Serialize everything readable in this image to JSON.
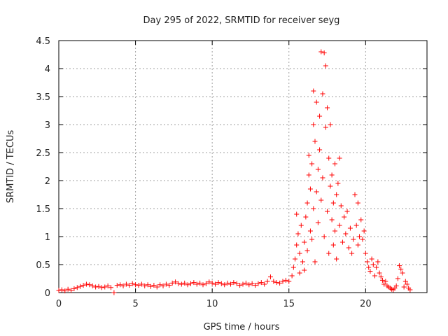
{
  "chart_data": {
    "type": "scatter",
    "title": "Day 295 of 2022, SRMTID for receiver seyg",
    "xlabel": "GPS time / hours",
    "ylabel": "SRMTID / TECUs",
    "xlim": [
      0,
      24
    ],
    "ylim": [
      0,
      4.5
    ],
    "grid": true,
    "marker": "+",
    "x_ticks": [
      {
        "value": 0,
        "label": "0"
      },
      {
        "value": 5,
        "label": "5"
      },
      {
        "value": 10,
        "label": "10"
      },
      {
        "value": 15,
        "label": "15"
      },
      {
        "value": 20,
        "label": "20"
      }
    ],
    "y_ticks": [
      {
        "value": 0,
        "label": "0"
      },
      {
        "value": 0.5,
        "label": "0.5"
      },
      {
        "value": 1,
        "label": "1"
      },
      {
        "value": 1.5,
        "label": "1.5"
      },
      {
        "value": 2,
        "label": "2"
      },
      {
        "value": 2.5,
        "label": "2.5"
      },
      {
        "value": 3,
        "label": "3"
      },
      {
        "value": 3.5,
        "label": "3.5"
      },
      {
        "value": 4,
        "label": "4"
      },
      {
        "value": 4.5,
        "label": "4.5"
      }
    ],
    "series": [
      {
        "name": "SRMTID",
        "color": "#ff0000",
        "points": [
          [
            0.0,
            0.04
          ],
          [
            0.2,
            0.05
          ],
          [
            0.4,
            0.03
          ],
          [
            0.6,
            0.06
          ],
          [
            0.8,
            0.04
          ],
          [
            1.0,
            0.07
          ],
          [
            1.2,
            0.09
          ],
          [
            1.4,
            0.11
          ],
          [
            1.6,
            0.13
          ],
          [
            1.8,
            0.15
          ],
          [
            2.0,
            0.14
          ],
          [
            2.2,
            0.12
          ],
          [
            2.4,
            0.1
          ],
          [
            2.6,
            0.11
          ],
          [
            2.8,
            0.09
          ],
          [
            3.0,
            0.1
          ],
          [
            3.2,
            0.12
          ],
          [
            3.4,
            0.09
          ],
          [
            3.6,
            0.0
          ],
          [
            3.8,
            0.13
          ],
          [
            4.0,
            0.14
          ],
          [
            4.2,
            0.12
          ],
          [
            4.4,
            0.15
          ],
          [
            4.6,
            0.13
          ],
          [
            4.8,
            0.16
          ],
          [
            5.0,
            0.14
          ],
          [
            5.2,
            0.13
          ],
          [
            5.4,
            0.15
          ],
          [
            5.6,
            0.12
          ],
          [
            5.8,
            0.14
          ],
          [
            6.0,
            0.11
          ],
          [
            6.2,
            0.13
          ],
          [
            6.4,
            0.1
          ],
          [
            6.6,
            0.14
          ],
          [
            6.8,
            0.12
          ],
          [
            7.0,
            0.15
          ],
          [
            7.2,
            0.13
          ],
          [
            7.4,
            0.17
          ],
          [
            7.6,
            0.19
          ],
          [
            7.8,
            0.16
          ],
          [
            8.0,
            0.15
          ],
          [
            8.2,
            0.17
          ],
          [
            8.4,
            0.14
          ],
          [
            8.6,
            0.16
          ],
          [
            8.8,
            0.18
          ],
          [
            9.0,
            0.15
          ],
          [
            9.2,
            0.17
          ],
          [
            9.4,
            0.14
          ],
          [
            9.6,
            0.16
          ],
          [
            9.8,
            0.19
          ],
          [
            10.0,
            0.17
          ],
          [
            10.2,
            0.15
          ],
          [
            10.4,
            0.18
          ],
          [
            10.6,
            0.16
          ],
          [
            10.8,
            0.14
          ],
          [
            11.0,
            0.17
          ],
          [
            11.2,
            0.15
          ],
          [
            11.4,
            0.18
          ],
          [
            11.6,
            0.16
          ],
          [
            11.8,
            0.13
          ],
          [
            12.0,
            0.15
          ],
          [
            12.2,
            0.17
          ],
          [
            12.4,
            0.14
          ],
          [
            12.6,
            0.16
          ],
          [
            12.8,
            0.13
          ],
          [
            13.0,
            0.16
          ],
          [
            13.2,
            0.18
          ],
          [
            13.4,
            0.15
          ],
          [
            13.6,
            0.2
          ],
          [
            13.8,
            0.28
          ],
          [
            14.0,
            0.2
          ],
          [
            14.2,
            0.18
          ],
          [
            14.4,
            0.17
          ],
          [
            14.6,
            0.2
          ],
          [
            14.8,
            0.22
          ],
          [
            15.0,
            0.2
          ],
          [
            15.2,
            0.3
          ],
          [
            15.3,
            0.45
          ],
          [
            15.4,
            0.6
          ],
          [
            15.5,
            0.85
          ],
          [
            15.5,
            1.4
          ],
          [
            15.6,
            1.05
          ],
          [
            15.7,
            0.35
          ],
          [
            15.7,
            0.7
          ],
          [
            15.8,
            1.2
          ],
          [
            15.9,
            0.55
          ],
          [
            16.0,
            0.9
          ],
          [
            16.0,
            0.4
          ],
          [
            16.1,
            1.35
          ],
          [
            16.2,
            1.6
          ],
          [
            16.2,
            0.75
          ],
          [
            16.3,
            2.1
          ],
          [
            16.3,
            2.45
          ],
          [
            16.4,
            1.1
          ],
          [
            16.4,
            1.85
          ],
          [
            16.5,
            0.95
          ],
          [
            16.5,
            2.3
          ],
          [
            16.6,
            3.0
          ],
          [
            16.6,
            3.6
          ],
          [
            16.6,
            1.5
          ],
          [
            16.7,
            2.7
          ],
          [
            16.7,
            0.55
          ],
          [
            16.8,
            3.4
          ],
          [
            16.8,
            1.8
          ],
          [
            16.9,
            1.25
          ],
          [
            16.9,
            2.2
          ],
          [
            17.0,
            3.15
          ],
          [
            17.0,
            2.55
          ],
          [
            17.1,
            4.3
          ],
          [
            17.1,
            1.65
          ],
          [
            17.2,
            3.55
          ],
          [
            17.2,
            2.05
          ],
          [
            17.3,
            4.28
          ],
          [
            17.3,
            1.0
          ],
          [
            17.4,
            4.05
          ],
          [
            17.4,
            2.95
          ],
          [
            17.5,
            3.3
          ],
          [
            17.5,
            1.45
          ],
          [
            17.6,
            2.4
          ],
          [
            17.6,
            0.7
          ],
          [
            17.7,
            3.0
          ],
          [
            17.7,
            1.9
          ],
          [
            17.8,
            2.1
          ],
          [
            17.8,
            1.3
          ],
          [
            17.9,
            1.6
          ],
          [
            17.9,
            0.85
          ],
          [
            18.0,
            2.3
          ],
          [
            18.0,
            1.1
          ],
          [
            18.1,
            1.75
          ],
          [
            18.1,
            0.6
          ],
          [
            18.2,
            1.95
          ],
          [
            18.3,
            2.4
          ],
          [
            18.3,
            1.2
          ],
          [
            18.4,
            1.55
          ],
          [
            18.5,
            0.9
          ],
          [
            18.6,
            1.35
          ],
          [
            18.7,
            1.05
          ],
          [
            18.8,
            1.45
          ],
          [
            18.9,
            0.8
          ],
          [
            19.0,
            1.15
          ],
          [
            19.1,
            0.7
          ],
          [
            19.2,
            0.95
          ],
          [
            19.3,
            1.75
          ],
          [
            19.4,
            1.2
          ],
          [
            19.5,
            1.6
          ],
          [
            19.5,
            0.85
          ],
          [
            19.6,
            1.0
          ],
          [
            19.7,
            1.3
          ],
          [
            19.8,
            0.95
          ],
          [
            19.9,
            1.1
          ],
          [
            20.0,
            0.7
          ],
          [
            20.1,
            0.55
          ],
          [
            20.2,
            0.45
          ],
          [
            20.3,
            0.38
          ],
          [
            20.4,
            0.6
          ],
          [
            20.5,
            0.5
          ],
          [
            20.6,
            0.3
          ],
          [
            20.7,
            0.45
          ],
          [
            20.8,
            0.55
          ],
          [
            20.9,
            0.35
          ],
          [
            21.0,
            0.28
          ],
          [
            21.1,
            0.22
          ],
          [
            21.2,
            0.15
          ],
          [
            21.3,
            0.2
          ],
          [
            21.4,
            0.12
          ],
          [
            21.5,
            0.1
          ],
          [
            21.6,
            0.08
          ],
          [
            21.7,
            0.06
          ],
          [
            21.8,
            0.05
          ],
          [
            21.9,
            0.08
          ],
          [
            22.0,
            0.12
          ],
          [
            22.1,
            0.25
          ],
          [
            22.2,
            0.48
          ],
          [
            22.3,
            0.42
          ],
          [
            22.4,
            0.35
          ],
          [
            22.5,
            0.1
          ],
          [
            22.6,
            0.2
          ],
          [
            22.7,
            0.15
          ],
          [
            22.8,
            0.08
          ],
          [
            22.9,
            0.05
          ]
        ]
      }
    ]
  }
}
